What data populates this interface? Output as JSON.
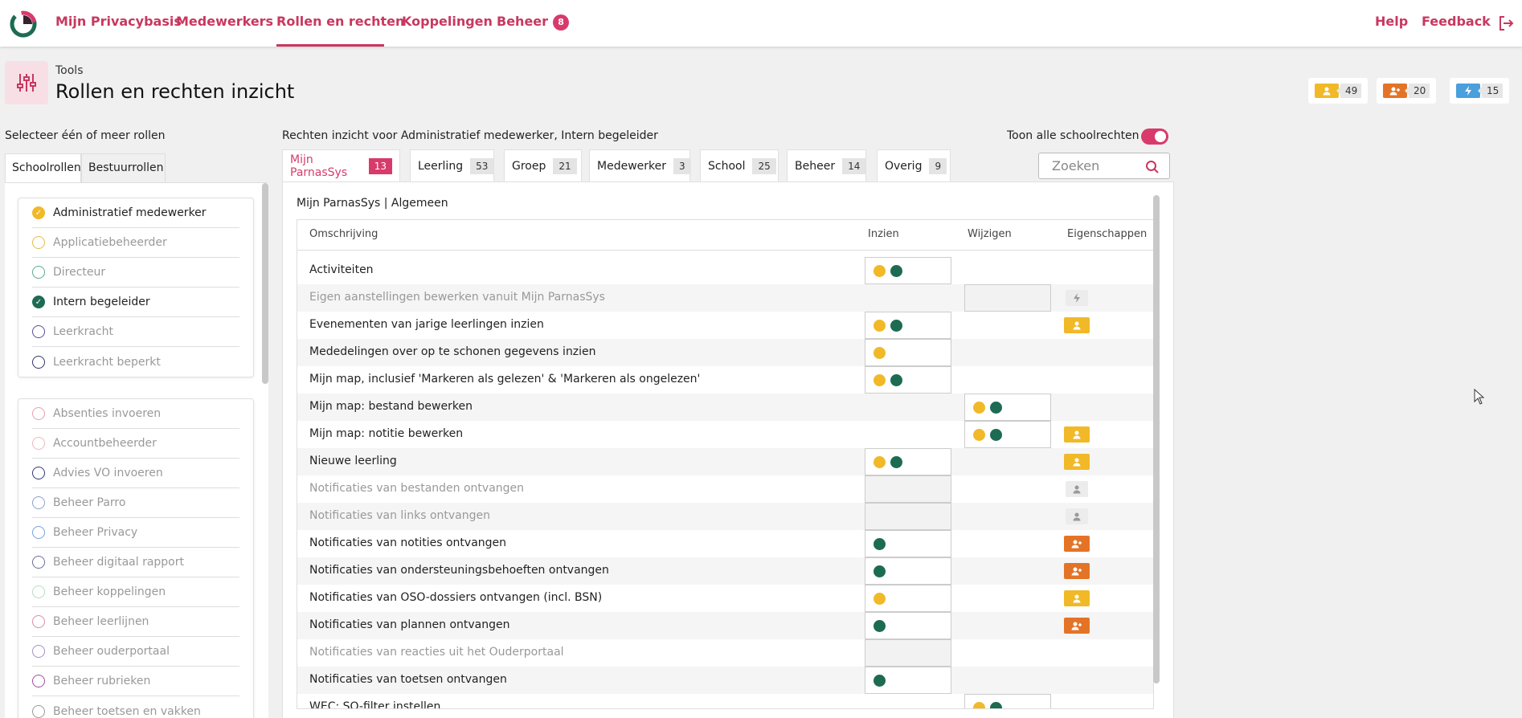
{
  "nav": {
    "items": [
      "Mijn Privacybasis",
      "Medewerkers",
      "Rollen en rechten",
      "Koppelingen",
      "Beheer"
    ],
    "beheer_badge": "8",
    "help": "Help",
    "feedback": "Feedback"
  },
  "header": {
    "section": "Tools",
    "title": "Rollen en rechten inzicht",
    "stats": [
      {
        "icon": "person-icon",
        "color": "#f1b928",
        "count": "49"
      },
      {
        "icon": "person-plus-icon",
        "color": "#e37427",
        "count": "20"
      },
      {
        "icon": "bolt-icon",
        "color": "#4a9fdd",
        "count": "15"
      }
    ]
  },
  "left": {
    "title": "Selecteer één of meer rollen",
    "tabs": [
      "Schoolrollen",
      "Bestuurrollen"
    ],
    "group1": [
      {
        "label": "Administratief medewerker",
        "checked": true,
        "color": "#f1b928"
      },
      {
        "label": "Applicatiebeheerder",
        "checked": false,
        "color": "#e0bd4e"
      },
      {
        "label": "Directeur",
        "checked": false,
        "color": "#5fa88d"
      },
      {
        "label": "Intern begeleider",
        "checked": true,
        "color": "#1d6b53"
      },
      {
        "label": "Leerkracht",
        "checked": false,
        "color": "#5b4d9a"
      },
      {
        "label": "Leerkracht beperkt",
        "checked": false,
        "color": "#303866"
      }
    ],
    "group2": [
      {
        "label": "Absenties invoeren",
        "color": "#e7a0ae"
      },
      {
        "label": "Accountbeheerder",
        "color": "#f0b7bd"
      },
      {
        "label": "Advies VO invoeren",
        "color": "#303877"
      },
      {
        "label": "Beheer Parro",
        "color": "#8fa0cf"
      },
      {
        "label": "Beheer Privacy",
        "color": "#7aa0d8"
      },
      {
        "label": "Beheer digitaal rapport",
        "color": "#6d6d99"
      },
      {
        "label": "Beheer koppelingen",
        "color": "#b6ddbf"
      },
      {
        "label": "Beheer leerlijnen",
        "color": "#d88fa0"
      },
      {
        "label": "Beheer ouderportaal",
        "color": "#a78cc9"
      },
      {
        "label": "Beheer rubrieken",
        "color": "#a14d9f"
      },
      {
        "label": "Beheer toetsen en vakken",
        "color": "#9a9a9a"
      }
    ]
  },
  "right": {
    "title": "Rechten inzicht voor Administratief medewerker, Intern begeleider",
    "toggle_label": "Toon alle schoolrechten",
    "tabs": [
      {
        "label": "Mijn ParnasSys",
        "count": "13"
      },
      {
        "label": "Leerling",
        "count": "53"
      },
      {
        "label": "Groep",
        "count": "21"
      },
      {
        "label": "Medewerker",
        "count": "3"
      },
      {
        "label": "School",
        "count": "25"
      },
      {
        "label": "Beheer",
        "count": "14"
      },
      {
        "label": "Overig",
        "count": "9"
      }
    ],
    "search_placeholder": "Zoeken",
    "section": "Mijn ParnasSys | Algemeen",
    "columns": [
      "Omschrijving",
      "Inzien",
      "Wijzigen",
      "Eigenschappen"
    ],
    "rows": [
      {
        "label": "Activiteiten",
        "dim": false,
        "inzien": [
          "y",
          "g"
        ],
        "wijzigen": null,
        "prop": null
      },
      {
        "label": "Eigen aanstellingen bewerken vanuit Mijn ParnasSys",
        "dim": true,
        "inzien": null,
        "wijzigen": [],
        "prop": "grey-bolt"
      },
      {
        "label": "Evenementen van jarige leerlingen inzien",
        "dim": false,
        "inzien": [
          "y",
          "g"
        ],
        "wijzigen": null,
        "prop": "yellow-person"
      },
      {
        "label": "Mededelingen over op te schonen gegevens inzien",
        "dim": false,
        "inzien": [
          "y"
        ],
        "wijzigen": null,
        "prop": null
      },
      {
        "label": "Mijn map, inclusief 'Markeren als gelezen' & 'Markeren als ongelezen'",
        "dim": false,
        "inzien": [
          "y",
          "g"
        ],
        "wijzigen": null,
        "prop": null
      },
      {
        "label": "Mijn map: bestand bewerken",
        "dim": false,
        "inzien": null,
        "wijzigen": [
          "y",
          "g"
        ],
        "prop": null
      },
      {
        "label": "Mijn map: notitie bewerken",
        "dim": false,
        "inzien": null,
        "wijzigen": [
          "y",
          "g"
        ],
        "prop": "yellow-person"
      },
      {
        "label": "Nieuwe leerling",
        "dim": false,
        "inzien": [
          "y",
          "g"
        ],
        "wijzigen": null,
        "prop": "yellow-person"
      },
      {
        "label": "Notificaties van bestanden ontvangen",
        "dim": true,
        "inzien": [],
        "wijzigen": null,
        "prop": "grey-person"
      },
      {
        "label": "Notificaties van links ontvangen",
        "dim": true,
        "inzien": [],
        "wijzigen": null,
        "prop": "grey-person"
      },
      {
        "label": "Notificaties van notities ontvangen",
        "dim": false,
        "inzien": [
          "g"
        ],
        "wijzigen": null,
        "prop": "orange-person"
      },
      {
        "label": "Notificaties van ondersteuningsbehoeften ontvangen",
        "dim": false,
        "inzien": [
          "g"
        ],
        "wijzigen": null,
        "prop": "orange-person"
      },
      {
        "label": "Notificaties van OSO-dossiers ontvangen (incl. BSN)",
        "dim": false,
        "inzien": [
          "y"
        ],
        "wijzigen": null,
        "prop": "yellow-person"
      },
      {
        "label": "Notificaties van plannen ontvangen",
        "dim": false,
        "inzien": [
          "g"
        ],
        "wijzigen": null,
        "prop": "orange-person"
      },
      {
        "label": "Notificaties van reacties uit het Ouderportaal",
        "dim": true,
        "inzien": [],
        "wijzigen": null,
        "prop": null
      },
      {
        "label": "Notificaties van toetsen ontvangen",
        "dim": false,
        "inzien": [
          "g"
        ],
        "wijzigen": null,
        "prop": null
      },
      {
        "label": "WEC: SO-filter instellen",
        "dim": false,
        "inzien": null,
        "wijzigen": [
          "y",
          "g"
        ],
        "prop": null
      }
    ]
  }
}
